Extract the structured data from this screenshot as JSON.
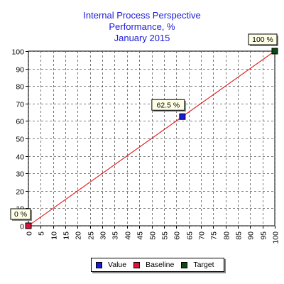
{
  "chart_data": {
    "type": "line",
    "title": [
      "Internal Process Perspective",
      "Performance, %",
      "January 2015"
    ],
    "xlabel": "",
    "ylabel": "",
    "xlim": [
      0,
      100
    ],
    "ylim": [
      0,
      100
    ],
    "x_ticks": [
      0,
      5,
      10,
      15,
      20,
      25,
      30,
      35,
      40,
      45,
      50,
      55,
      60,
      65,
      70,
      75,
      80,
      85,
      90,
      95,
      100
    ],
    "y_ticks": [
      0,
      10,
      20,
      30,
      40,
      50,
      60,
      70,
      80,
      90,
      100
    ],
    "grid": true,
    "line": {
      "x": [
        0,
        100
      ],
      "y": [
        0,
        100
      ],
      "color": "#e00000"
    },
    "points": [
      {
        "name": "Value",
        "x": 62.5,
        "y": 62.5,
        "label": "62.5 %",
        "color": "#1a1ae0"
      },
      {
        "name": "Baseline",
        "x": 0,
        "y": 0,
        "label": "0 %",
        "color": "#e0103c"
      },
      {
        "name": "Target",
        "x": 100,
        "y": 100,
        "label": "100 %",
        "color": "#0a4a14"
      }
    ],
    "legend_position": "bottom"
  },
  "legend": [
    {
      "label": "Value",
      "color": "#1a1ae0"
    },
    {
      "label": "Baseline",
      "color": "#e0103c"
    },
    {
      "label": "Target",
      "color": "#0a4a14"
    }
  ]
}
